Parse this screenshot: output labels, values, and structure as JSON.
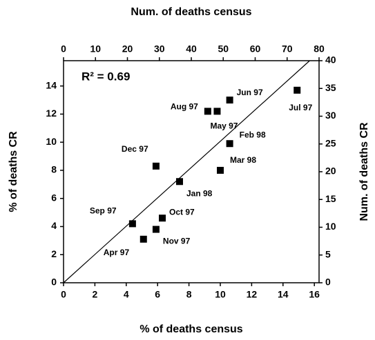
{
  "chart_data": {
    "type": "scatter",
    "xlabel": "% of deaths census",
    "x2label": "Num. of deaths census",
    "ylabel": "% of deaths CR",
    "y2label": "Num. of deaths CR",
    "annotation": "R² = 0.69",
    "xlim": [
      0,
      16.3
    ],
    "xticks": [
      0,
      2,
      4,
      6,
      8,
      10,
      12,
      14,
      16
    ],
    "x2lim": [
      0,
      80
    ],
    "x2ticks": [
      0,
      10,
      20,
      30,
      40,
      50,
      60,
      70,
      80
    ],
    "ylim": [
      0,
      15.8
    ],
    "yticks": [
      0,
      2,
      4,
      6,
      8,
      10,
      12,
      14
    ],
    "y2lim": [
      0,
      40
    ],
    "y2ticks": [
      0,
      5,
      10,
      15,
      20,
      25,
      30,
      35,
      40
    ],
    "color": "#000000",
    "points": {
      "labels": [
        "Sep 97",
        "Apr 97",
        "Nov 97",
        "Oct 97",
        "Dec 97",
        "Jan 98",
        "Mar 98",
        "Feb 98",
        "Aug 97",
        "May 97",
        "Jun 97",
        "Jul 97"
      ],
      "x": [
        4.4,
        5.1,
        5.9,
        6.3,
        5.9,
        7.4,
        10.0,
        10.6,
        9.2,
        9.8,
        10.6,
        14.9
      ],
      "y": [
        4.2,
        3.1,
        3.8,
        4.6,
        8.3,
        7.2,
        8.0,
        9.9,
        12.2,
        12.2,
        13.0,
        13.7
      ]
    },
    "fit_line": {
      "x": [
        0,
        15.7
      ],
      "y": [
        0,
        15.8
      ]
    }
  }
}
